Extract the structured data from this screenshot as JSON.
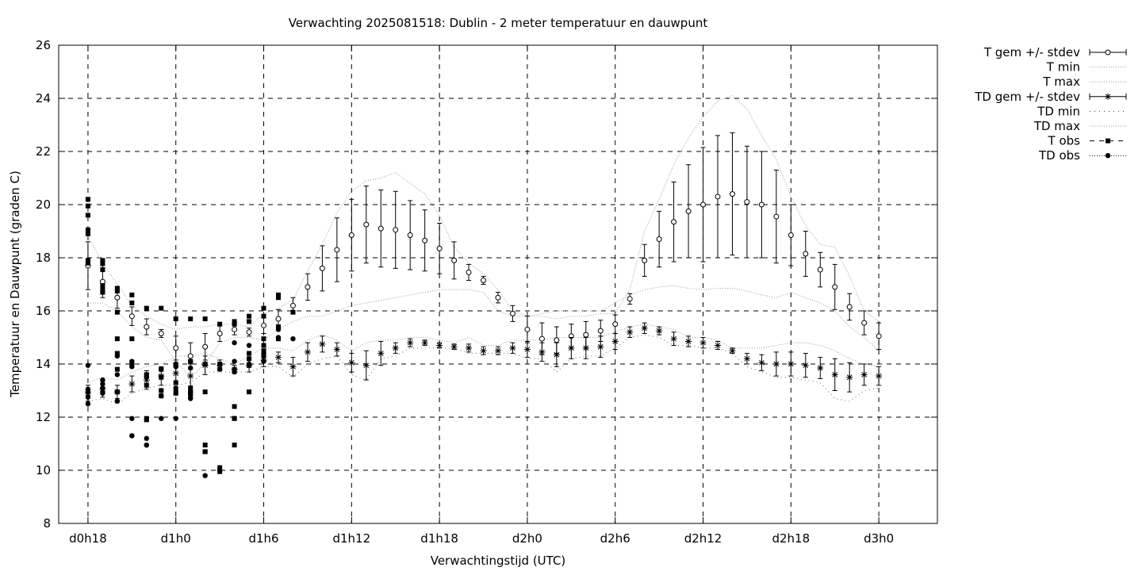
{
  "chart_data": {
    "type": "line",
    "title": "Verwachting 2025081518: Dublin - 2 meter temperatuur en dauwpunt",
    "xlabel": "Verwachtingstijd (UTC)",
    "ylabel": "Temperatuur en Dauwpunt (graden C)",
    "x_unit": "hours",
    "xlim": [
      16,
      76
    ],
    "ylim": [
      8,
      26
    ],
    "grid": true,
    "legend_position": "outside-right-top",
    "x_ticks": [
      {
        "x": 18,
        "label": "d0h18"
      },
      {
        "x": 24,
        "label": "d1h0"
      },
      {
        "x": 30,
        "label": "d1h6"
      },
      {
        "x": 36,
        "label": "d1h12"
      },
      {
        "x": 42,
        "label": "d1h18"
      },
      {
        "x": 48,
        "label": "d2h0"
      },
      {
        "x": 54,
        "label": "d2h6"
      },
      {
        "x": 60,
        "label": "d2h12"
      },
      {
        "x": 66,
        "label": "d2h18"
      },
      {
        "x": 72,
        "label": "d3h0"
      }
    ],
    "y_ticks": [
      8,
      10,
      12,
      14,
      16,
      18,
      20,
      22,
      24,
      26
    ],
    "legend": [
      {
        "label": "T gem +/- stdev",
        "style": "errorbar-circle"
      },
      {
        "label": "T min",
        "style": "dotted"
      },
      {
        "label": "T max",
        "style": "dotted"
      },
      {
        "label": "TD gem +/- stdev",
        "style": "errorbar-star"
      },
      {
        "label": "TD min",
        "style": "dotted-sparse"
      },
      {
        "label": "TD max",
        "style": "dotted"
      },
      {
        "label": "T obs",
        "style": "dashed-square"
      },
      {
        "label": "TD obs",
        "style": "dotted-circle"
      }
    ],
    "series": [
      {
        "name": "T gem +/- stdev",
        "x": [
          18,
          19,
          20,
          21,
          22,
          23,
          24,
          25,
          26,
          27,
          28,
          29,
          30,
          31,
          32,
          33,
          34,
          35,
          36,
          37,
          38,
          39,
          40,
          41,
          42,
          43,
          44,
          45,
          46,
          47,
          48,
          49,
          50,
          51,
          52,
          53,
          54,
          55,
          56,
          57,
          58,
          59,
          60,
          61,
          62,
          63,
          64,
          65,
          66,
          67,
          68,
          69,
          70,
          71,
          72
        ],
        "mean": [
          17.7,
          17.1,
          16.5,
          15.8,
          15.4,
          15.15,
          14.6,
          14.3,
          14.65,
          15.15,
          15.3,
          15.2,
          15.45,
          15.7,
          16.2,
          16.9,
          17.6,
          18.3,
          18.85,
          19.25,
          19.1,
          19.05,
          18.85,
          18.65,
          18.35,
          17.9,
          17.45,
          17.15,
          16.5,
          15.9,
          15.3,
          14.95,
          14.9,
          15.05,
          15.1,
          15.25,
          15.5,
          16.45,
          17.9,
          18.7,
          19.35,
          19.75,
          20.0,
          20.3,
          20.4,
          20.1,
          20.0,
          19.55,
          18.85,
          18.15,
          17.55,
          16.9,
          16.15,
          15.55,
          15.05
        ],
        "stdev": [
          0.9,
          0.6,
          0.4,
          0.35,
          0.3,
          0.15,
          0.45,
          0.5,
          0.5,
          0.3,
          0.2,
          0.15,
          0.3,
          0.35,
          0.3,
          0.5,
          0.85,
          1.2,
          1.35,
          1.45,
          1.45,
          1.45,
          1.3,
          1.15,
          0.95,
          0.7,
          0.3,
          0.15,
          0.2,
          0.3,
          0.5,
          0.6,
          0.5,
          0.45,
          0.5,
          0.4,
          0.35,
          0.2,
          0.6,
          1.05,
          1.5,
          1.75,
          2.15,
          2.3,
          2.3,
          2.1,
          2.0,
          1.75,
          1.15,
          0.85,
          0.65,
          0.85,
          0.5,
          0.45,
          0.5
        ]
      },
      {
        "name": "T min",
        "x": [
          18,
          19,
          20,
          21,
          22,
          23,
          24,
          25,
          26,
          27,
          28,
          29,
          30,
          31,
          32,
          33,
          34,
          35,
          36,
          37,
          38,
          39,
          40,
          41,
          42,
          43,
          44,
          45,
          46,
          47,
          48,
          49,
          50,
          51,
          52,
          53,
          54,
          55,
          56,
          57,
          58,
          59,
          60,
          61,
          62,
          63,
          64,
          65,
          66,
          67,
          68,
          69,
          70,
          71,
          72
        ],
        "values": [
          16.3,
          16.3,
          16.0,
          15.4,
          15.0,
          14.9,
          14.1,
          13.5,
          14.0,
          14.8,
          15.0,
          15.0,
          14.9,
          15.3,
          15.6,
          15.8,
          15.8,
          16.0,
          16.2,
          16.3,
          16.4,
          16.5,
          16.6,
          16.7,
          16.8,
          16.8,
          16.8,
          16.7,
          16.0,
          15.8,
          15.8,
          15.9,
          16.0,
          16.0,
          16.0,
          16.0,
          16.3,
          16.6,
          16.8,
          16.9,
          16.95,
          16.85,
          16.8,
          16.85,
          16.85,
          16.75,
          16.6,
          16.5,
          16.7,
          16.5,
          16.3,
          16.0,
          15.4,
          15.0,
          14.5
        ]
      },
      {
        "name": "T max",
        "x": [
          18,
          19,
          20,
          21,
          22,
          23,
          24,
          25,
          26,
          27,
          28,
          29,
          30,
          31,
          32,
          33,
          34,
          35,
          36,
          37,
          38,
          39,
          40,
          41,
          42,
          43,
          44,
          45,
          46,
          47,
          48,
          49,
          50,
          51,
          52,
          53,
          54,
          55,
          56,
          57,
          58,
          59,
          60,
          61,
          62,
          63,
          64,
          65,
          66,
          67,
          68,
          69,
          70,
          71,
          72
        ],
        "values": [
          18.8,
          17.8,
          17.0,
          16.2,
          15.8,
          15.5,
          15.3,
          15.4,
          15.4,
          15.5,
          15.5,
          15.4,
          15.9,
          16.1,
          16.4,
          17.5,
          18.5,
          19.7,
          20.5,
          20.9,
          21.0,
          21.2,
          20.8,
          20.4,
          19.6,
          18.4,
          17.8,
          17.4,
          16.8,
          16.0,
          15.8,
          15.8,
          15.7,
          15.8,
          15.8,
          15.9,
          15.9,
          16.8,
          19.0,
          20.2,
          21.5,
          22.5,
          23.3,
          23.9,
          24.1,
          23.6,
          22.6,
          21.7,
          20.3,
          19.2,
          18.5,
          18.4,
          17.3,
          16.0,
          15.6
        ]
      },
      {
        "name": "TD gem +/- stdev",
        "x": [
          18,
          19,
          20,
          21,
          22,
          23,
          24,
          25,
          26,
          27,
          28,
          29,
          30,
          31,
          32,
          33,
          34,
          35,
          36,
          37,
          38,
          39,
          40,
          41,
          42,
          43,
          44,
          45,
          46,
          47,
          48,
          49,
          50,
          51,
          52,
          53,
          54,
          55,
          56,
          57,
          58,
          59,
          60,
          61,
          62,
          63,
          64,
          65,
          66,
          67,
          68,
          69,
          70,
          71,
          72
        ],
        "mean": [
          12.9,
          13.05,
          12.95,
          13.25,
          13.4,
          13.55,
          13.65,
          13.55,
          13.95,
          13.95,
          13.8,
          13.95,
          14.15,
          14.25,
          13.9,
          14.45,
          14.75,
          14.55,
          14.05,
          13.95,
          14.4,
          14.6,
          14.8,
          14.8,
          14.7,
          14.65,
          14.6,
          14.5,
          14.5,
          14.6,
          14.55,
          14.45,
          14.35,
          14.6,
          14.6,
          14.65,
          14.85,
          15.2,
          15.35,
          15.25,
          14.95,
          14.85,
          14.8,
          14.7,
          14.5,
          14.2,
          14.05,
          14.0,
          14.0,
          13.95,
          13.85,
          13.6,
          13.5,
          13.6,
          13.55
        ],
        "stdev": [
          0.3,
          0.3,
          0.25,
          0.3,
          0.35,
          0.35,
          0.4,
          0.45,
          0.35,
          0.2,
          0.15,
          0.25,
          0.25,
          0.2,
          0.35,
          0.35,
          0.3,
          0.25,
          0.35,
          0.55,
          0.45,
          0.2,
          0.15,
          0.1,
          0.1,
          0.1,
          0.15,
          0.15,
          0.15,
          0.2,
          0.3,
          0.35,
          0.45,
          0.4,
          0.4,
          0.4,
          0.3,
          0.2,
          0.2,
          0.15,
          0.25,
          0.2,
          0.2,
          0.15,
          0.1,
          0.2,
          0.3,
          0.45,
          0.45,
          0.45,
          0.4,
          0.6,
          0.55,
          0.4,
          0.35
        ]
      },
      {
        "name": "TD min",
        "x": [
          18,
          19,
          20,
          21,
          22,
          23,
          24,
          25,
          26,
          27,
          28,
          29,
          30,
          31,
          32,
          33,
          34,
          35,
          36,
          37,
          38,
          39,
          40,
          41,
          42,
          43,
          44,
          45,
          46,
          47,
          48,
          49,
          50,
          51,
          52,
          53,
          54,
          55,
          56,
          57,
          58,
          59,
          60,
          61,
          62,
          63,
          64,
          65,
          66,
          67,
          68,
          69,
          70,
          71,
          72
        ],
        "values": [
          12.6,
          12.7,
          12.5,
          12.9,
          13.1,
          13.2,
          13.2,
          13.3,
          13.7,
          13.7,
          13.7,
          13.7,
          13.9,
          13.9,
          13.5,
          14.0,
          14.2,
          14.3,
          13.6,
          13.4,
          14.2,
          14.3,
          14.6,
          14.6,
          14.6,
          14.6,
          14.4,
          14.4,
          14.4,
          14.4,
          14.2,
          14.2,
          13.7,
          14.2,
          14.3,
          14.3,
          14.6,
          15.0,
          15.1,
          15.0,
          14.7,
          14.7,
          14.6,
          14.6,
          14.4,
          13.9,
          13.7,
          13.5,
          13.5,
          13.4,
          13.3,
          12.7,
          12.6,
          13.0,
          13.1
        ]
      },
      {
        "name": "TD max",
        "x": [
          18,
          19,
          20,
          21,
          22,
          23,
          24,
          25,
          26,
          27,
          28,
          29,
          30,
          31,
          32,
          33,
          34,
          35,
          36,
          37,
          38,
          39,
          40,
          41,
          42,
          43,
          44,
          45,
          46,
          47,
          48,
          49,
          50,
          51,
          52,
          53,
          54,
          55,
          56,
          57,
          58,
          59,
          60,
          61,
          62,
          63,
          64,
          65,
          66,
          67,
          68,
          69,
          70,
          71,
          72
        ],
        "values": [
          13.3,
          13.5,
          13.4,
          13.7,
          13.9,
          14.0,
          14.3,
          14.3,
          14.4,
          14.2,
          14.0,
          14.3,
          14.6,
          14.6,
          14.5,
          14.9,
          15.1,
          14.9,
          14.5,
          14.8,
          14.9,
          14.9,
          15.0,
          15.0,
          14.9,
          14.8,
          15.0,
          14.7,
          14.7,
          14.9,
          14.9,
          14.9,
          15.0,
          15.0,
          15.0,
          15.0,
          15.2,
          15.4,
          15.5,
          15.4,
          15.3,
          15.0,
          15.0,
          14.9,
          14.6,
          14.6,
          14.6,
          14.7,
          14.8,
          14.8,
          14.7,
          14.5,
          14.2,
          14.0,
          13.9
        ]
      },
      {
        "name": "T obs",
        "x": [
          18,
          18,
          18,
          18,
          18,
          18,
          18,
          18,
          19,
          19,
          19,
          19,
          19,
          19,
          20,
          20,
          20,
          20,
          20,
          20,
          20,
          21,
          21,
          21,
          21,
          21,
          22,
          22,
          22,
          22,
          22,
          23,
          23,
          23,
          23,
          23,
          24,
          24,
          24,
          24,
          24,
          25,
          25,
          25,
          25,
          25,
          25,
          26,
          26,
          26,
          26,
          26,
          26,
          27,
          27,
          27,
          27,
          28,
          28,
          28,
          28,
          28,
          28,
          29,
          29,
          29,
          29,
          29,
          29,
          30,
          30,
          30,
          30,
          30,
          31,
          31,
          31,
          31,
          32
        ],
        "values": [
          20.2,
          19.95,
          19.6,
          19.05,
          18.9,
          17.9,
          17.85,
          17.8,
          17.9,
          17.8,
          17.55,
          16.95,
          16.8,
          16.7,
          16.85,
          16.75,
          15.95,
          14.4,
          13.8,
          12.95,
          14.95,
          16.6,
          16.3,
          14.95,
          14.05,
          13.95,
          16.1,
          13.6,
          13.2,
          11.95,
          11.9,
          16.1,
          13.8,
          13.5,
          13.0,
          12.8,
          15.7,
          13.95,
          13.3,
          12.95,
          12.9,
          15.7,
          14.1,
          13.1,
          12.95,
          12.9,
          12.8,
          15.7,
          14.0,
          12.95,
          10.95,
          10.7,
          10.7,
          15.5,
          14.0,
          10.1,
          9.95,
          15.6,
          15.5,
          12.4,
          11.95,
          11.95,
          10.95,
          15.8,
          15.6,
          14.4,
          14.2,
          13.95,
          12.95,
          16.1,
          15.8,
          14.95,
          14.7,
          14.5,
          16.6,
          16.5,
          15.4,
          14.95,
          15.95
        ]
      },
      {
        "name": "TD obs",
        "x": [
          18,
          18,
          18,
          18,
          18,
          19,
          19,
          19,
          19,
          19,
          20,
          20,
          20,
          20,
          20,
          21,
          21,
          21,
          21,
          21,
          22,
          22,
          22,
          22,
          22,
          23,
          23,
          23,
          23,
          24,
          24,
          24,
          24,
          25,
          25,
          25,
          25,
          26,
          26,
          27,
          27,
          28,
          28,
          28,
          28,
          29,
          29,
          29,
          29,
          30,
          30,
          30,
          30,
          31,
          31,
          31,
          32
        ],
        "values": [
          13.95,
          13.05,
          12.95,
          12.75,
          12.5,
          13.4,
          13.25,
          13.1,
          12.95,
          12.9,
          14.3,
          13.6,
          12.95,
          12.6,
          12.6,
          14.1,
          13.9,
          11.95,
          11.3,
          11.3,
          13.6,
          13.5,
          11.2,
          10.95,
          10.95,
          13.8,
          13.0,
          12.8,
          11.95,
          14.0,
          13.9,
          13.1,
          11.95,
          14.1,
          13.85,
          12.95,
          12.7,
          14.0,
          9.8,
          13.8,
          10.0,
          14.8,
          14.1,
          13.8,
          13.7,
          14.7,
          14.2,
          14.0,
          13.95,
          14.4,
          14.3,
          14.3,
          14.1,
          15.3,
          15.0,
          14.95,
          14.95
        ]
      }
    ]
  }
}
